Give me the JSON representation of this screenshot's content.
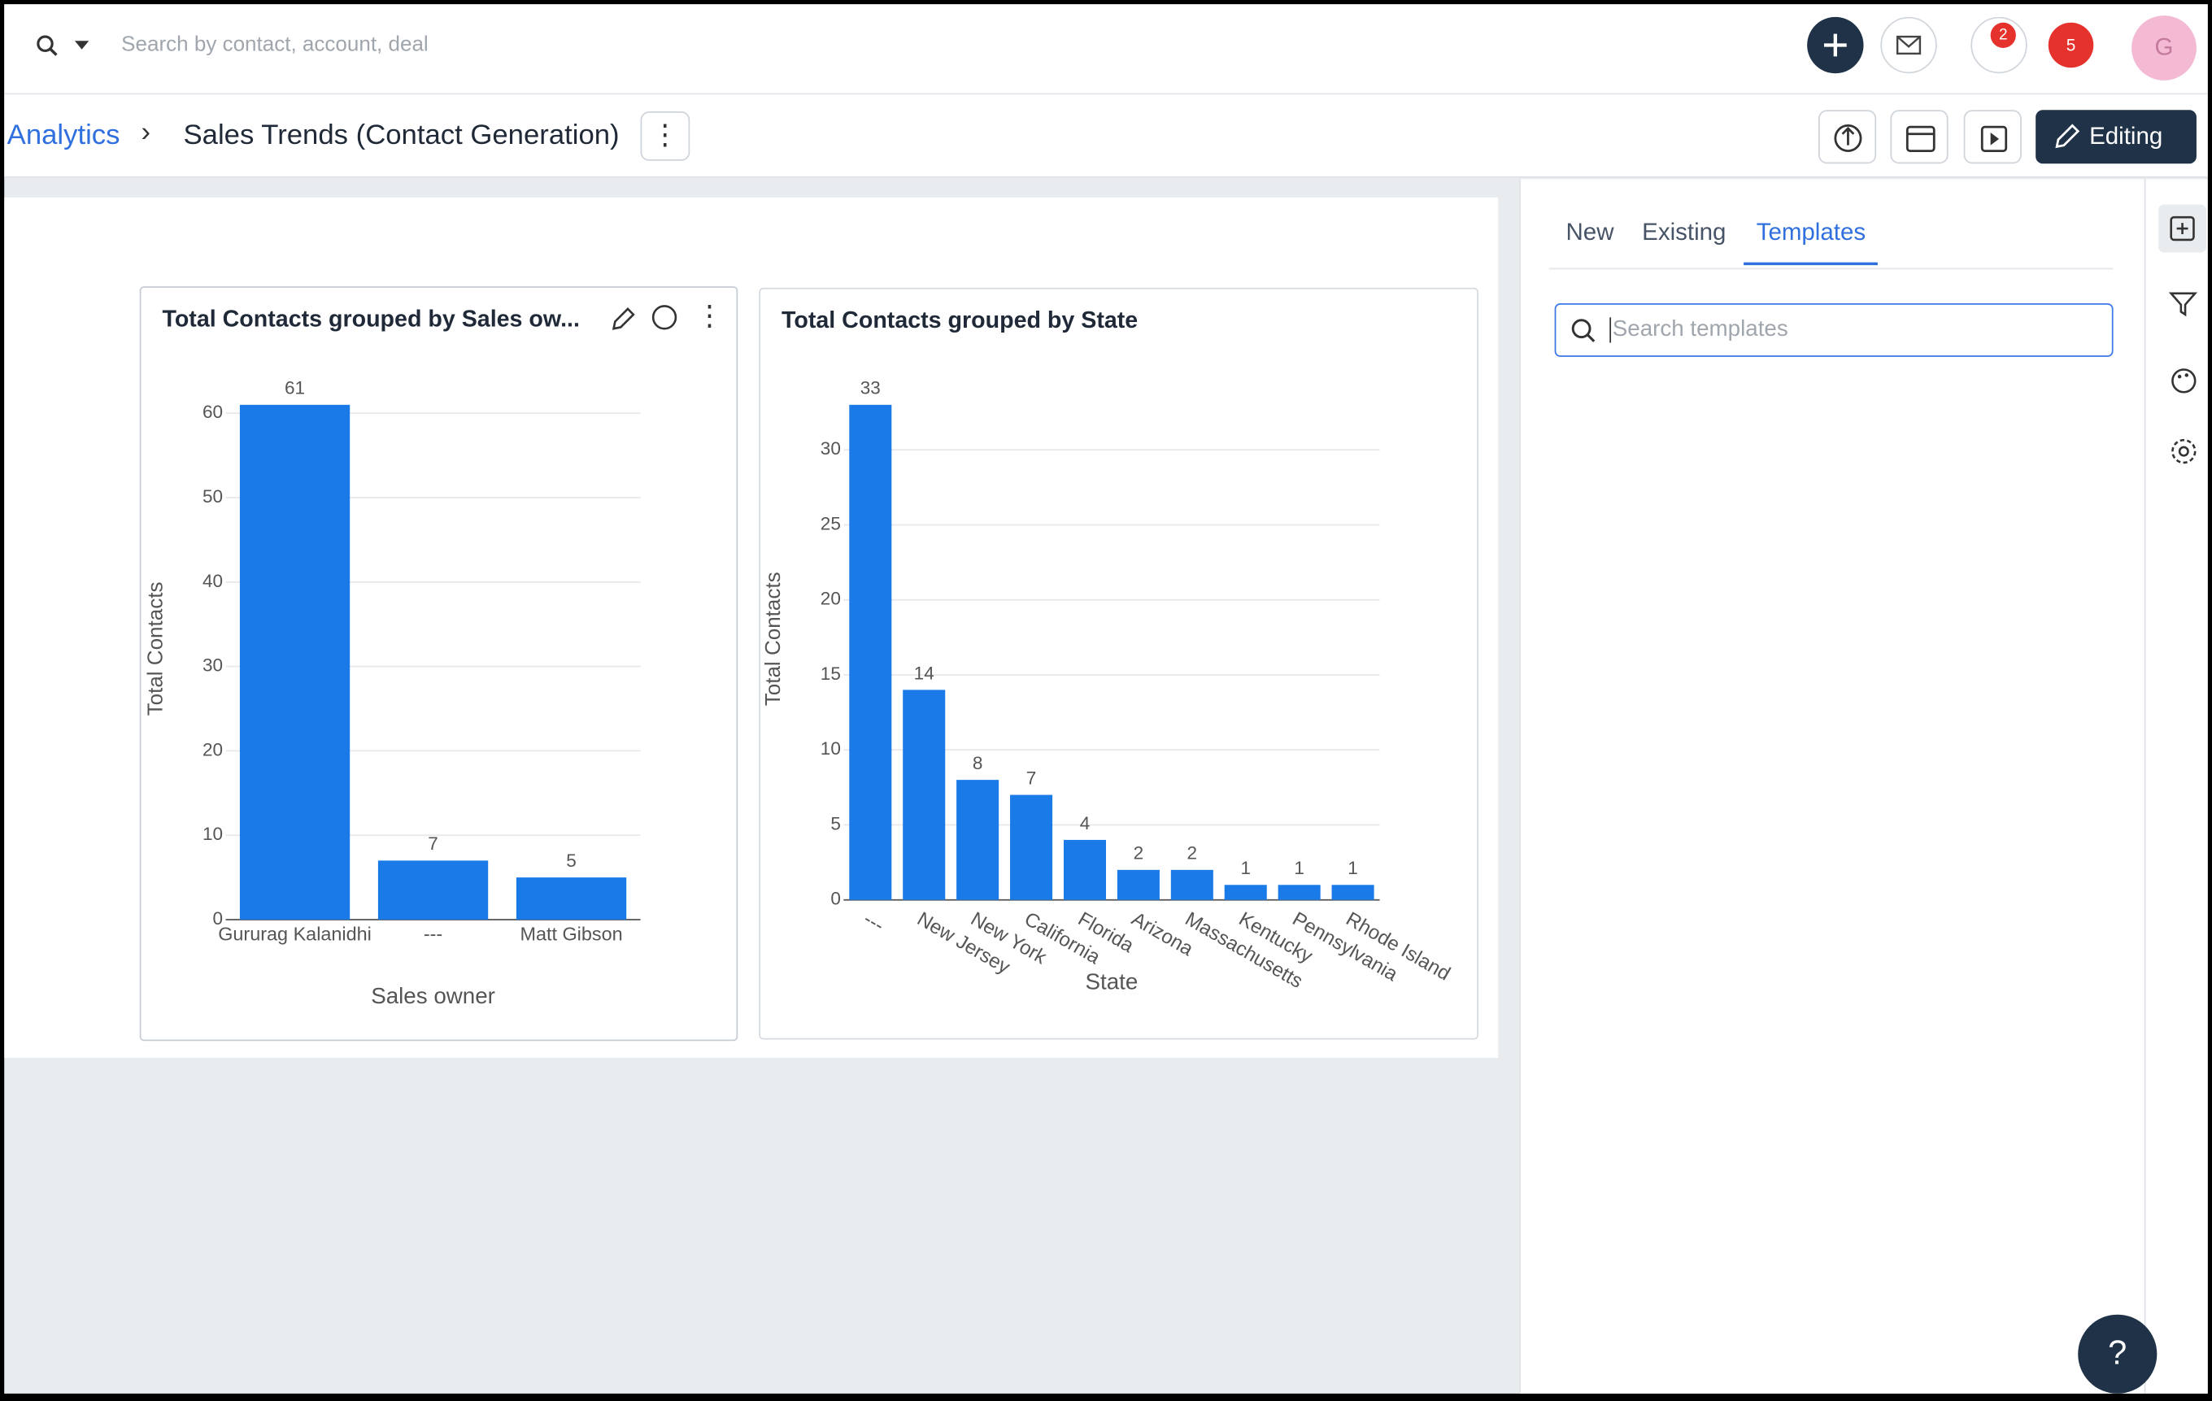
{
  "topbar": {
    "search_placeholder": "Search by contact, account, deal",
    "badges": [
      "2",
      "5"
    ],
    "avatar": "G"
  },
  "breadcrumb": {
    "root": "Analytics",
    "title": "Sales Trends (Contact Generation)",
    "edit_button": "Editing"
  },
  "side_panel": {
    "tabs": [
      "New",
      "Existing",
      "Templates"
    ],
    "active_tab": 2,
    "search_placeholder": "Search templates"
  },
  "help": "?",
  "chart_data": [
    {
      "type": "bar",
      "title": "Total Contacts grouped by Sales ow...",
      "x_label": "Sales owner",
      "y_label": "Total Contacts",
      "categories": [
        "Gururag Kalanidhi",
        "---",
        "Matt Gibson"
      ],
      "values": [
        61,
        7,
        5
      ],
      "color": "#1a7be8",
      "ylim": [
        0,
        61
      ],
      "yticks": [
        0,
        10,
        20,
        30,
        40,
        50,
        60
      ],
      "grid": true,
      "rotate_labels": false
    },
    {
      "type": "bar",
      "title": "Total Contacts grouped by State",
      "x_label": "State",
      "y_label": "Total Contacts",
      "categories": [
        "---",
        "New Jersey",
        "New York",
        "California",
        "Florida",
        "Arizona",
        "Massachusetts",
        "Kentucky",
        "Pennsylvania",
        "Rhode Island"
      ],
      "values": [
        33,
        14,
        8,
        7,
        4,
        2,
        2,
        1,
        1,
        1
      ],
      "color": "#1a7be8",
      "ylim": [
        0,
        33
      ],
      "yticks": [
        0,
        5,
        10,
        15,
        20,
        25,
        30
      ],
      "grid": true,
      "rotate_labels": true
    }
  ]
}
